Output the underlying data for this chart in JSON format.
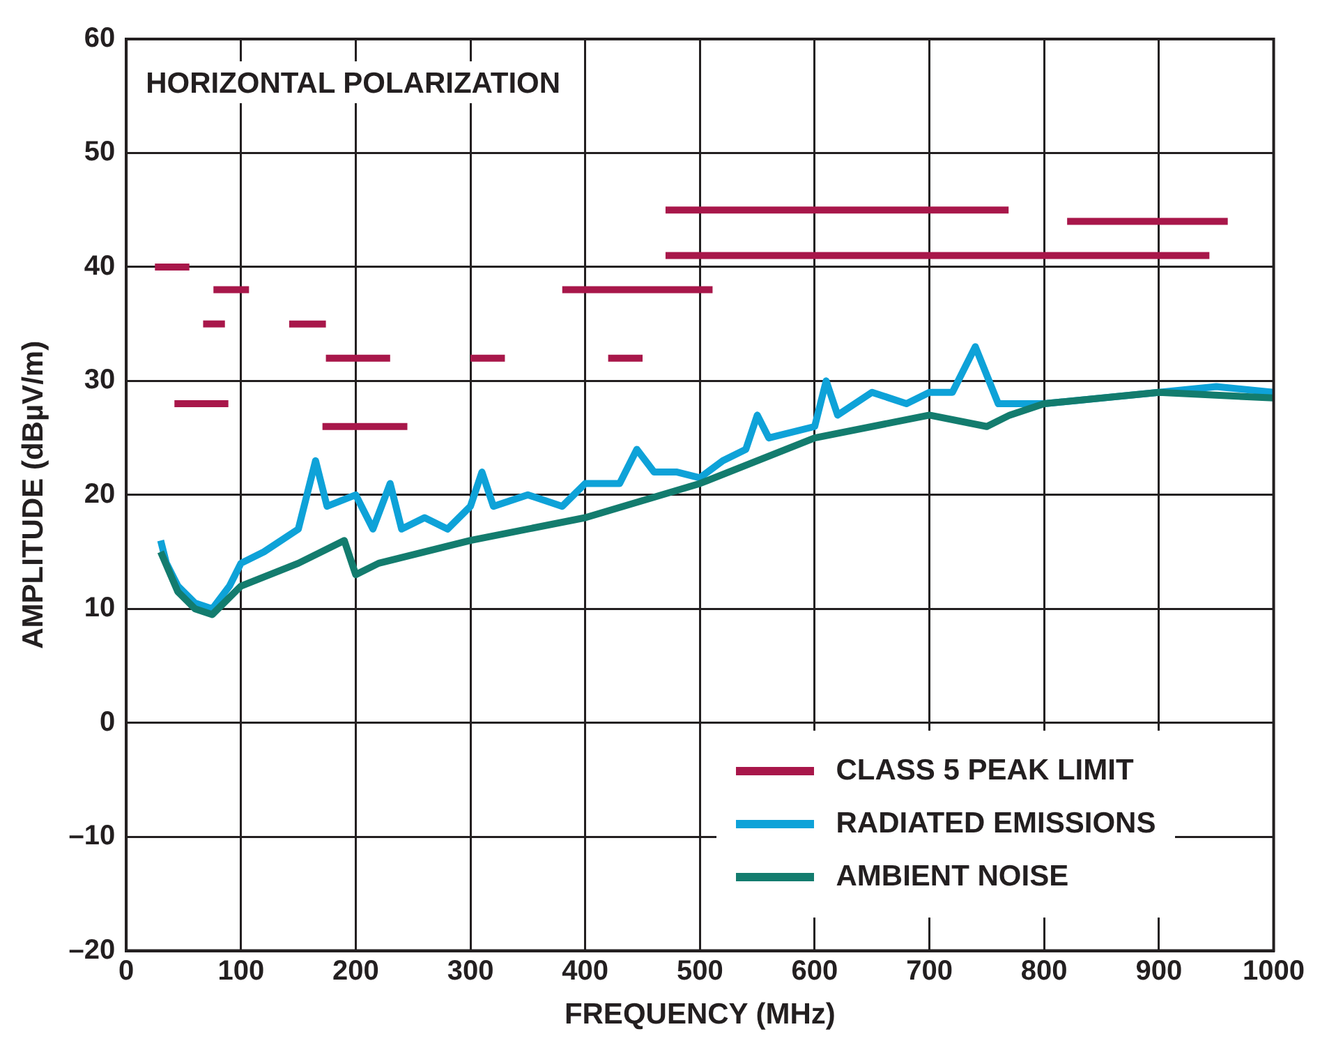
{
  "chart_data": {
    "type": "line",
    "xlabel": "FREQUENCY (MHz)",
    "ylabel": "AMPLITUDE (dBµV/m)",
    "annotations": [
      "HORIZONTAL POLARIZATION"
    ],
    "xlim": [
      0,
      1000
    ],
    "xticks": [
      0,
      100,
      200,
      300,
      400,
      500,
      600,
      700,
      800,
      900,
      1000
    ],
    "ylim": [
      -20,
      60
    ],
    "yticks": [
      {
        "value": -20,
        "label": "–20"
      },
      {
        "value": -10,
        "label": "–10"
      },
      0,
      10,
      20,
      30,
      40,
      50,
      60
    ],
    "grid": true,
    "legend": "bottom right",
    "marker": "none",
    "line_style": "solid",
    "series": [
      {
        "name": "CLASS 5 PEAK LIMIT",
        "color": "#a8174a",
        "x": [
          25,
          55
        ],
        "values": [
          40,
          40
        ]
      },
      {
        "color": "#a8174a",
        "x": [
          42,
          89
        ],
        "values": [
          28,
          28
        ]
      },
      {
        "color": "#a8174a",
        "x": [
          67,
          86
        ],
        "values": [
          35,
          35
        ]
      },
      {
        "color": "#a8174a",
        "x": [
          76,
          107
        ],
        "values": [
          38,
          38
        ]
      },
      {
        "color": "#a8174a",
        "x": [
          142,
          174
        ],
        "values": [
          35,
          35
        ]
      },
      {
        "color": "#a8174a",
        "x": [
          174,
          230
        ],
        "values": [
          32,
          32
        ]
      },
      {
        "color": "#a8174a",
        "x": [
          171,
          245
        ],
        "values": [
          26,
          26
        ]
      },
      {
        "color": "#a8174a",
        "x": [
          300,
          330
        ],
        "values": [
          32,
          32
        ]
      },
      {
        "color": "#a8174a",
        "x": [
          380,
          511
        ],
        "values": [
          38,
          38
        ]
      },
      {
        "color": "#a8174a",
        "x": [
          420,
          450
        ],
        "values": [
          32,
          32
        ]
      },
      {
        "color": "#a8174a",
        "x": [
          470,
          769
        ],
        "values": [
          45,
          45
        ]
      },
      {
        "color": "#a8174a",
        "x": [
          470,
          944
        ],
        "values": [
          41,
          41
        ]
      },
      {
        "color": "#a8174a",
        "x": [
          820,
          960
        ],
        "values": [
          44,
          44
        ]
      },
      {
        "name": "RADIATED EMISSIONS",
        "color": "#0ea2d8",
        "x": [
          30,
          35,
          45,
          60,
          75,
          90,
          100,
          120,
          150,
          165,
          175,
          200,
          215,
          230,
          240,
          260,
          280,
          300,
          310,
          320,
          350,
          380,
          400,
          430,
          445,
          460,
          480,
          500,
          520,
          540,
          550,
          560,
          600,
          610,
          620,
          650,
          680,
          700,
          720,
          740,
          760,
          800,
          850,
          900,
          950,
          1000
        ],
        "values": [
          16,
          14,
          12,
          10.5,
          10,
          12,
          14,
          15,
          17,
          23,
          19,
          20,
          17,
          21,
          17,
          18,
          17,
          19,
          22,
          19,
          20,
          19,
          21,
          21,
          24,
          22,
          22,
          21.5,
          23,
          24,
          27,
          25,
          26,
          30,
          27,
          29,
          28,
          29,
          29,
          33,
          28,
          28,
          28.5,
          29,
          29.5,
          29
        ]
      },
      {
        "name": "AMBIENT NOISE",
        "color": "#137c6e",
        "x": [
          30,
          45,
          60,
          75,
          100,
          150,
          190,
          200,
          220,
          300,
          400,
          500,
          600,
          700,
          750,
          770,
          800,
          900,
          1000
        ],
        "values": [
          15,
          11.5,
          10,
          9.5,
          12,
          14,
          16,
          13,
          14,
          16,
          18,
          21,
          25,
          27,
          26,
          27,
          28,
          29,
          28.5
        ]
      }
    ]
  }
}
